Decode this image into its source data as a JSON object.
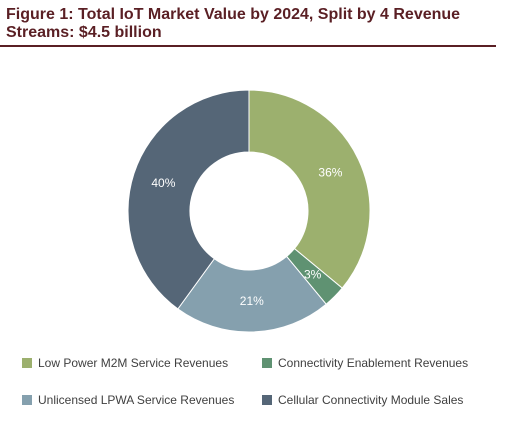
{
  "title": "Figure 1: Total IoT Market Value by 2024, Split by 4 Revenue Streams: $4.5 billion",
  "chart_data": {
    "type": "pie",
    "donut": true,
    "title": "Figure 1: Total IoT Market Value by 2024, Split by 4 Revenue Streams: $4.5 billion",
    "categories": [
      "Low Power M2M Service Revenues",
      "Connectivity Enablement Revenues",
      "Unlicensed LPWA Service Revenues",
      "Cellular Connectivity Module Sales"
    ],
    "values": [
      36,
      3,
      21,
      40
    ],
    "value_labels": [
      "36%",
      "3%",
      "21%",
      "40%"
    ],
    "unit": "%",
    "colors": [
      "#9cb06e",
      "#5f9272",
      "#85a0ae",
      "#556677"
    ],
    "legend_position": "bottom"
  }
}
